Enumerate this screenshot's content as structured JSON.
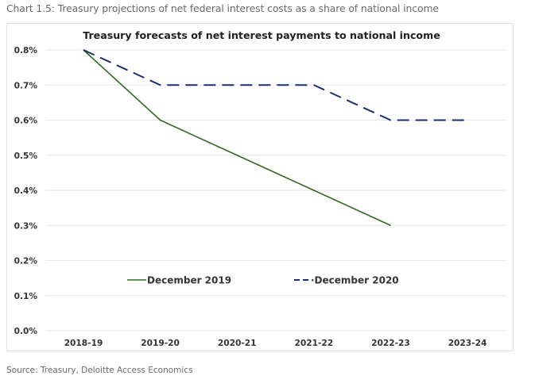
{
  "caption": "Chart 1.5: Treasury projections of net federal interest costs as a share of national income",
  "source": "Source:  Treasury, Deloitte Access Economics",
  "colors": {
    "december_2019": "#2e6b1f",
    "december_2020": "#1a2f6b",
    "gridline": "#e6e6e6",
    "text": "#333333"
  },
  "chart_data": {
    "type": "line",
    "title": "Treasury forecasts of net interest payments to national income",
    "xlabel": "",
    "ylabel": "",
    "categories": [
      "2018-19",
      "2019-20",
      "2020-21",
      "2021-22",
      "2022-23",
      "2023-24"
    ],
    "ylim": [
      0,
      0.8
    ],
    "yticks": [
      0.0,
      0.1,
      0.2,
      0.3,
      0.4,
      0.5,
      0.6,
      0.7,
      0.8
    ],
    "ytick_labels": [
      "0.0%",
      "0.1%",
      "0.2%",
      "0.3%",
      "0.4%",
      "0.5%",
      "0.6%",
      "0.7%",
      "0.8%"
    ],
    "grid": true,
    "legend_position": "bottom-inside",
    "series": [
      {
        "name": "December 2019",
        "style": "solid",
        "values": [
          0.8,
          0.6,
          0.5,
          0.4,
          0.3,
          null
        ]
      },
      {
        "name": "December 2020",
        "style": "dashed",
        "values": [
          0.8,
          0.7,
          0.7,
          0.7,
          0.6,
          0.6
        ]
      }
    ],
    "legend_labels": [
      "December 2019",
      "·December 2020"
    ],
    "units": "% of national income"
  }
}
